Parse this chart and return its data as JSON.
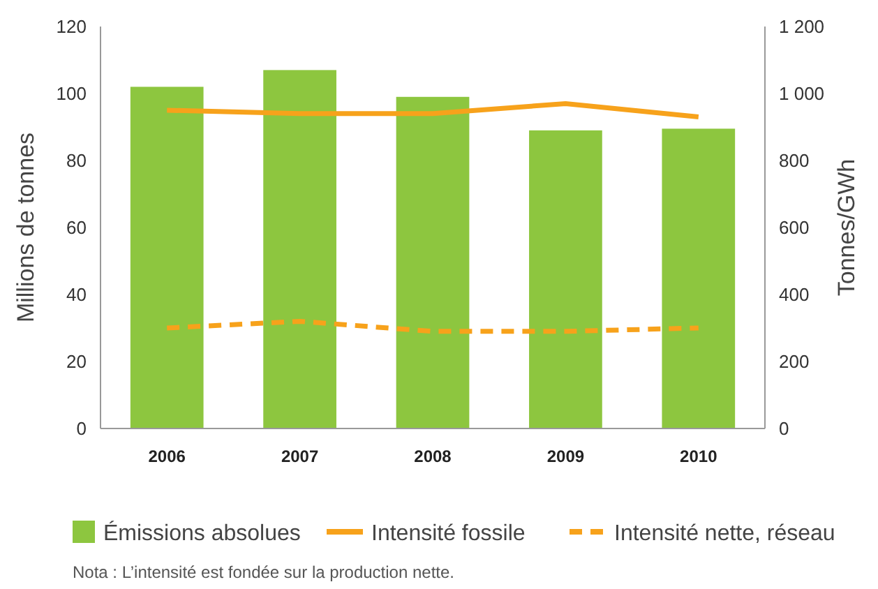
{
  "chart_data": {
    "type": "bar",
    "categories": [
      "2006",
      "2007",
      "2008",
      "2009",
      "2010"
    ],
    "ylabel": "Millions de tonnes",
    "y2label": "Tonnes/GWh",
    "ylim": [
      0,
      120
    ],
    "yticks": [
      0,
      20,
      40,
      60,
      80,
      100,
      120
    ],
    "y2lim": [
      0,
      1200
    ],
    "y2ticks": [
      0,
      200,
      400,
      600,
      800,
      {
        "value": 1000,
        "label": "1 000"
      },
      {
        "value": 1200,
        "label": "1 200"
      }
    ],
    "series": [
      {
        "name": "Émissions absolues",
        "color": "#8dc63f",
        "values": [
          102,
          107,
          99,
          89,
          89.5
        ]
      },
      {
        "name": "Intensité fossile",
        "type": "line",
        "axis": "y2",
        "color": "#f7a21b",
        "line_style": "solid",
        "values": [
          950,
          940,
          940,
          970,
          930
        ]
      },
      {
        "name": "Intensité nette, réseau",
        "type": "line",
        "axis": "y2",
        "color": "#f7a21b",
        "line_style": "dashed",
        "values": [
          300,
          320,
          290,
          290,
          300
        ]
      }
    ],
    "legend": "bottom",
    "grid": false,
    "annotations": [
      "Nota : L’intensité est fondée sur la production nette."
    ]
  }
}
